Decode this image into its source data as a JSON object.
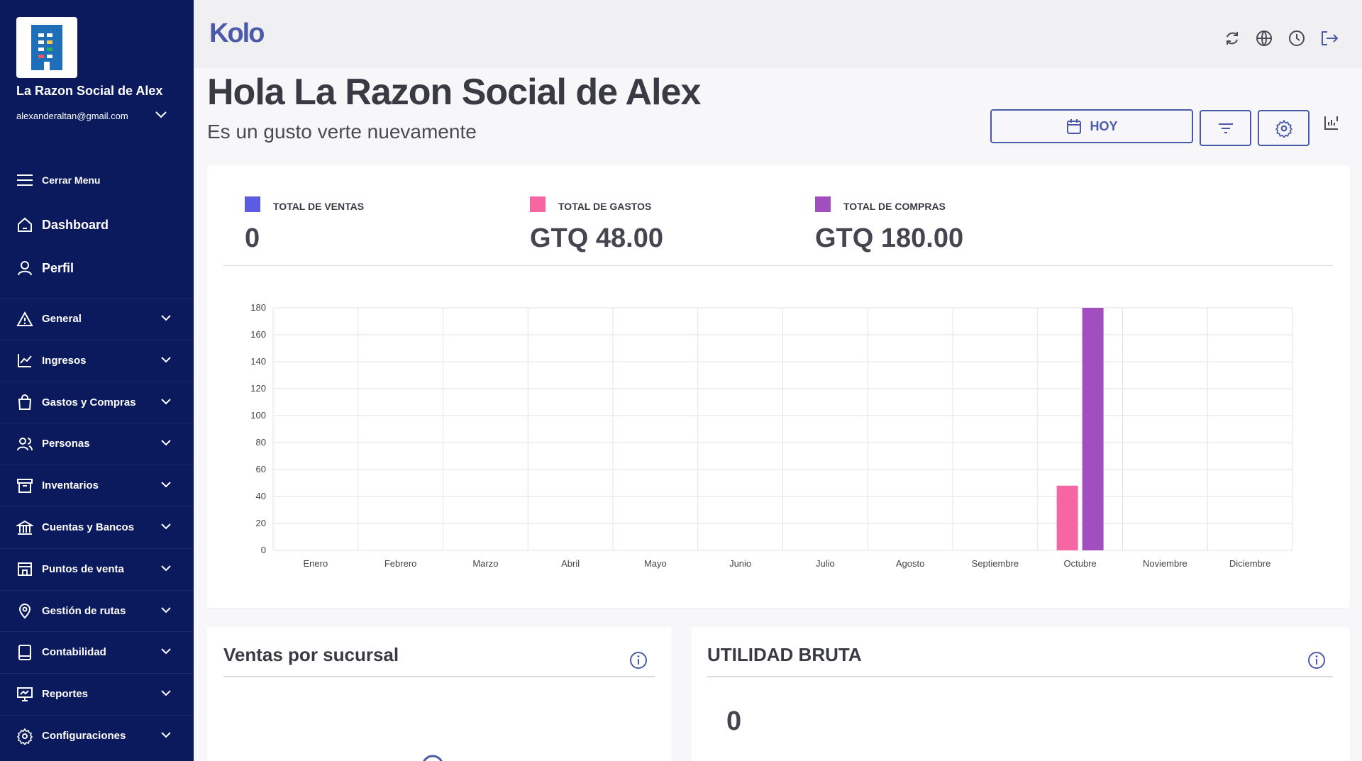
{
  "sidebar": {
    "company_name": "La Razon Social de Alex",
    "email": "alexanderaltan@gmail.com",
    "close_menu": "Cerrar Menu",
    "dashboard": "Dashboard",
    "perfil": "Perfil",
    "groups": [
      {
        "label": "General",
        "icon": "warning-icon"
      },
      {
        "label": "Ingresos",
        "icon": "trend-icon"
      },
      {
        "label": "Gastos y Compras",
        "icon": "shopping-bag-icon"
      },
      {
        "label": "Personas",
        "icon": "users-icon"
      },
      {
        "label": "Inventarios",
        "icon": "archive-icon"
      },
      {
        "label": "Cuentas y Bancos",
        "icon": "bank-icon"
      },
      {
        "label": "Puntos de venta",
        "icon": "store-icon"
      },
      {
        "label": "Gestión de rutas",
        "icon": "map-pin-icon"
      },
      {
        "label": "Contabilidad",
        "icon": "book-icon"
      },
      {
        "label": "Reportes",
        "icon": "presentation-icon"
      },
      {
        "label": "Configuraciones",
        "icon": "gear-icon"
      }
    ]
  },
  "topbar": {
    "brand": "Kolo"
  },
  "header": {
    "greeting": "Hola La Razon Social de Alex",
    "subgreeting": "Es un gusto verte nuevamente",
    "hoy_label": "HOY"
  },
  "stats": {
    "ventas_label": "TOTAL DE VENTAS",
    "ventas_value": "0",
    "gastos_label": "TOTAL DE GASTOS",
    "gastos_value": "GTQ 48.00",
    "compras_label": "TOTAL DE COMPRAS",
    "compras_value": "GTQ 180.00"
  },
  "colors": {
    "ventas": "#5b5ce0",
    "gastos": "#f566a3",
    "compras": "#a14fbf",
    "sidebar": "#0a1a5c",
    "accent": "#4a5aa8"
  },
  "chart_data": {
    "type": "bar",
    "categories": [
      "Enero",
      "Febrero",
      "Marzo",
      "Abril",
      "Mayo",
      "Junio",
      "Julio",
      "Agosto",
      "Septiembre",
      "Octubre",
      "Noviembre",
      "Diciembre"
    ],
    "series": [
      {
        "name": "TOTAL DE VENTAS",
        "values": [
          0,
          0,
          0,
          0,
          0,
          0,
          0,
          0,
          0,
          0,
          0,
          0
        ]
      },
      {
        "name": "TOTAL DE GASTOS",
        "values": [
          0,
          0,
          0,
          0,
          0,
          0,
          0,
          0,
          0,
          48,
          0,
          0
        ]
      },
      {
        "name": "TOTAL DE COMPRAS",
        "values": [
          0,
          0,
          0,
          0,
          0,
          0,
          0,
          0,
          0,
          180,
          0,
          0
        ]
      }
    ],
    "yticks": [
      0,
      20,
      40,
      60,
      80,
      100,
      120,
      140,
      160,
      180
    ],
    "ylim": [
      0,
      180
    ],
    "grid": true
  },
  "sucursal": {
    "title": "Ventas por sucursal"
  },
  "utilidad": {
    "title": "UTILIDAD BRUTA",
    "value": "0"
  }
}
